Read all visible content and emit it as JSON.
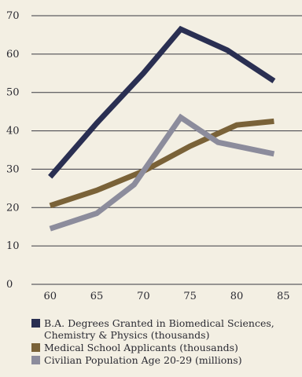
{
  "chart_data": {
    "type": "line",
    "x": [
      60,
      65,
      70,
      75,
      80,
      85
    ],
    "xlim": [
      58,
      87
    ],
    "ylim": [
      0,
      70
    ],
    "xticks": [
      "60",
      "65",
      "70",
      "75",
      "80",
      "85"
    ],
    "yticks": [
      "0",
      "10",
      "20",
      "30",
      "40",
      "50",
      "60",
      "70"
    ],
    "grid": "horizontal",
    "legend_position": "bottom",
    "series": [
      {
        "name": "B.A. Degrees Granted in Biomedical Sciences, Chemistry & Physics (thousands)",
        "label_lines": [
          "B.A. Degrees Granted in Biomedical Sciences,",
          "Chemistry & Physics (thousands)"
        ],
        "color": "#2a2f52",
        "x": [
          60,
          65,
          70,
          74,
          79,
          84
        ],
        "values": [
          28,
          42,
          55,
          66.5,
          61,
          53
        ]
      },
      {
        "name": "Medical School Applicants (thousands)",
        "label_lines": [
          "Medical School Applicants (thousands)"
        ],
        "color": "#7a6238",
        "x": [
          60,
          65,
          70,
          75,
          80,
          84
        ],
        "values": [
          20.5,
          24.5,
          29.5,
          36,
          41.5,
          42.5
        ]
      },
      {
        "name": "Civilian Population Age 20-29 (millions)",
        "label_lines": [
          "Civilian Population Age 20-29 (millions)"
        ],
        "color": "#8c8c9c",
        "x": [
          60,
          65,
          69,
          74,
          78,
          84
        ],
        "values": [
          14.5,
          18.5,
          26,
          43.5,
          37,
          34
        ]
      }
    ]
  }
}
